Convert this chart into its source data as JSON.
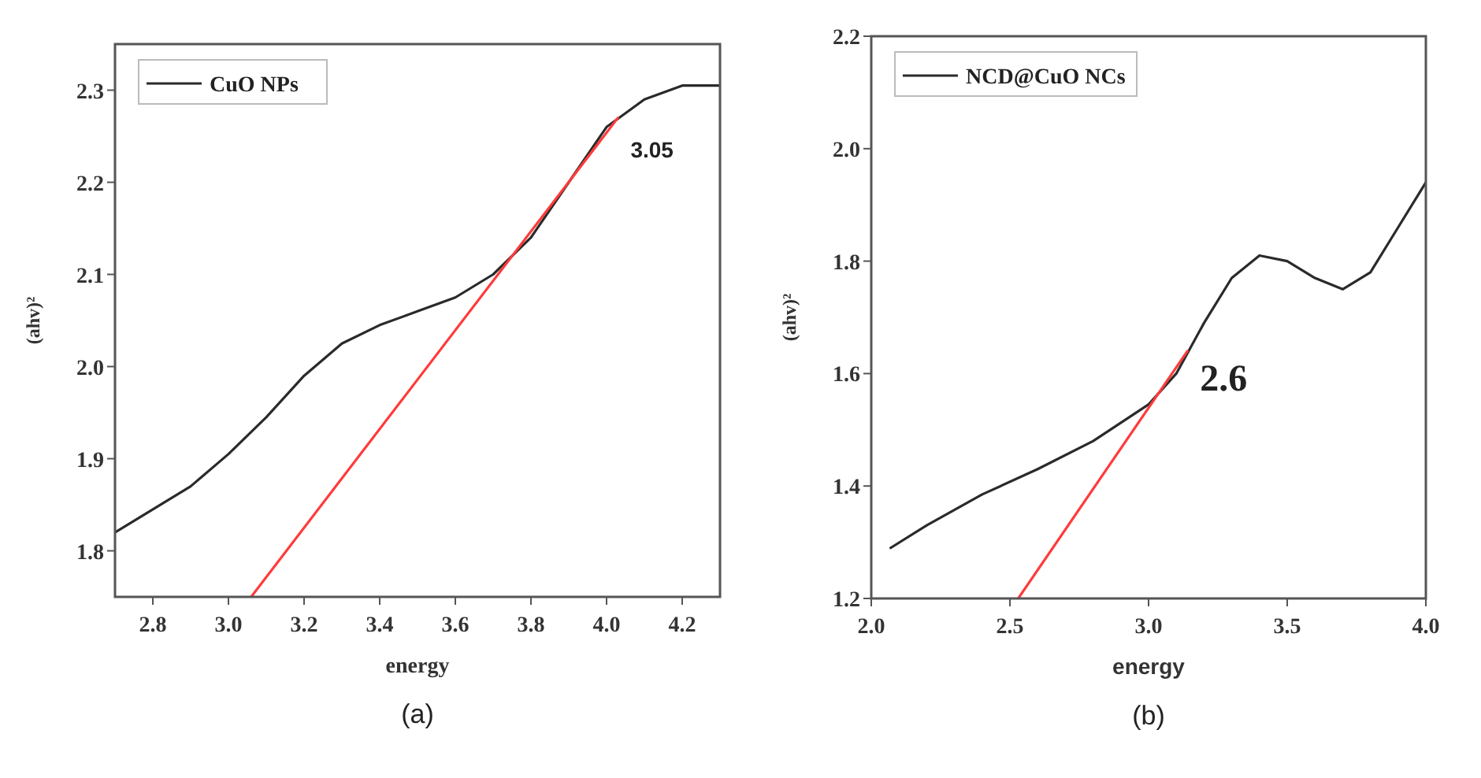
{
  "chart_data": [
    {
      "type": "line",
      "xlabel": "energy",
      "ylabel": "(ahv)²",
      "xlim": [
        2.7,
        4.3
      ],
      "ylim": [
        1.75,
        2.35
      ],
      "xticks": [
        {
          "value": 2.8,
          "label": "2.8"
        },
        {
          "value": 3.0,
          "label": "3.0"
        },
        {
          "value": 3.2,
          "label": "3.2"
        },
        {
          "value": 3.4,
          "label": "3.4"
        },
        {
          "value": 3.6,
          "label": "3.6"
        },
        {
          "value": 3.8,
          "label": "3.8"
        },
        {
          "value": 4.0,
          "label": "4.0"
        },
        {
          "value": 4.2,
          "label": "4.2"
        }
      ],
      "yticks": [
        1.8,
        1.9,
        {
          "value": 2.0,
          "label": "2.0"
        },
        2.1,
        2.2,
        2.3
      ],
      "legend": "top left",
      "grid": false,
      "series": [
        {
          "name": "CuO NPs",
          "color": "#2a2a2a",
          "x": [
            2.7,
            2.8,
            2.9,
            3.0,
            3.1,
            3.2,
            3.3,
            3.4,
            3.5,
            3.6,
            3.7,
            3.8,
            3.9,
            4.0,
            4.1,
            4.2,
            4.3
          ],
          "values": [
            1.82,
            1.845,
            1.87,
            1.905,
            1.945,
            1.99,
            2.025,
            2.045,
            2.06,
            2.075,
            2.1,
            2.14,
            2.2,
            2.26,
            2.29,
            2.305,
            2.305
          ]
        },
        {
          "color": "#ff3b3b",
          "x": [
            3.06,
            4.03
          ],
          "values": [
            1.75,
            2.27
          ]
        }
      ],
      "annotations": [
        "3.05",
        "(a)"
      ]
    },
    {
      "type": "line",
      "xlabel": "energy",
      "ylabel": "(ahv)²",
      "xlim": [
        2.0,
        4.0
      ],
      "ylim": [
        1.2,
        2.2
      ],
      "xticks": [
        {
          "value": 2.0,
          "label": "2.0"
        },
        2.5,
        {
          "value": 3.0,
          "label": "3.0"
        },
        3.5,
        {
          "value": 4.0,
          "label": "4.0"
        }
      ],
      "yticks": [
        1.2,
        1.4,
        1.6,
        1.8,
        {
          "value": 2.0,
          "label": "2.0"
        },
        2.2
      ],
      "legend": "top left",
      "grid": false,
      "series": [
        {
          "name": "NCD@CuO NCs",
          "color": "#2a2a2a",
          "x": [
            2.07,
            2.2,
            2.4,
            2.6,
            2.8,
            3.0,
            3.1,
            3.2,
            3.3,
            3.4,
            3.5,
            3.6,
            3.7,
            3.8,
            3.9,
            4.0
          ],
          "values": [
            1.29,
            1.33,
            1.385,
            1.43,
            1.48,
            1.545,
            1.6,
            1.69,
            1.77,
            1.81,
            1.8,
            1.77,
            1.75,
            1.78,
            1.86,
            1.94
          ]
        },
        {
          "color": "#ff3b3b",
          "x": [
            2.53,
            3.14
          ],
          "values": [
            1.2,
            1.64
          ]
        }
      ],
      "annotations": [
        "2.6",
        "(b)"
      ]
    }
  ]
}
